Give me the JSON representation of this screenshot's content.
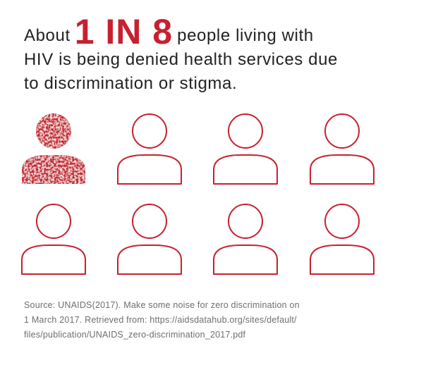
{
  "headline": {
    "prefix": "About",
    "highlight": "1 IN 8",
    "suffix_line1": "people living with",
    "line2": "HIV is being denied health services due",
    "line3": "to discrimination or stigma."
  },
  "pictogram": {
    "highlighted_count": 1,
    "total_count": 8,
    "colors": {
      "accent": "#c8202f",
      "outline": "#c8202f"
    },
    "icon": "person-icon"
  },
  "source": {
    "line1": "Source: UNAIDS(2017). Make some noise for zero discrimination on",
    "line2": "1 March 2017. Retrieved from: https://aidsdatahub.org/sites/default/",
    "line3": "files/publication/UNAIDS_zero-discrimination_2017.pdf"
  }
}
